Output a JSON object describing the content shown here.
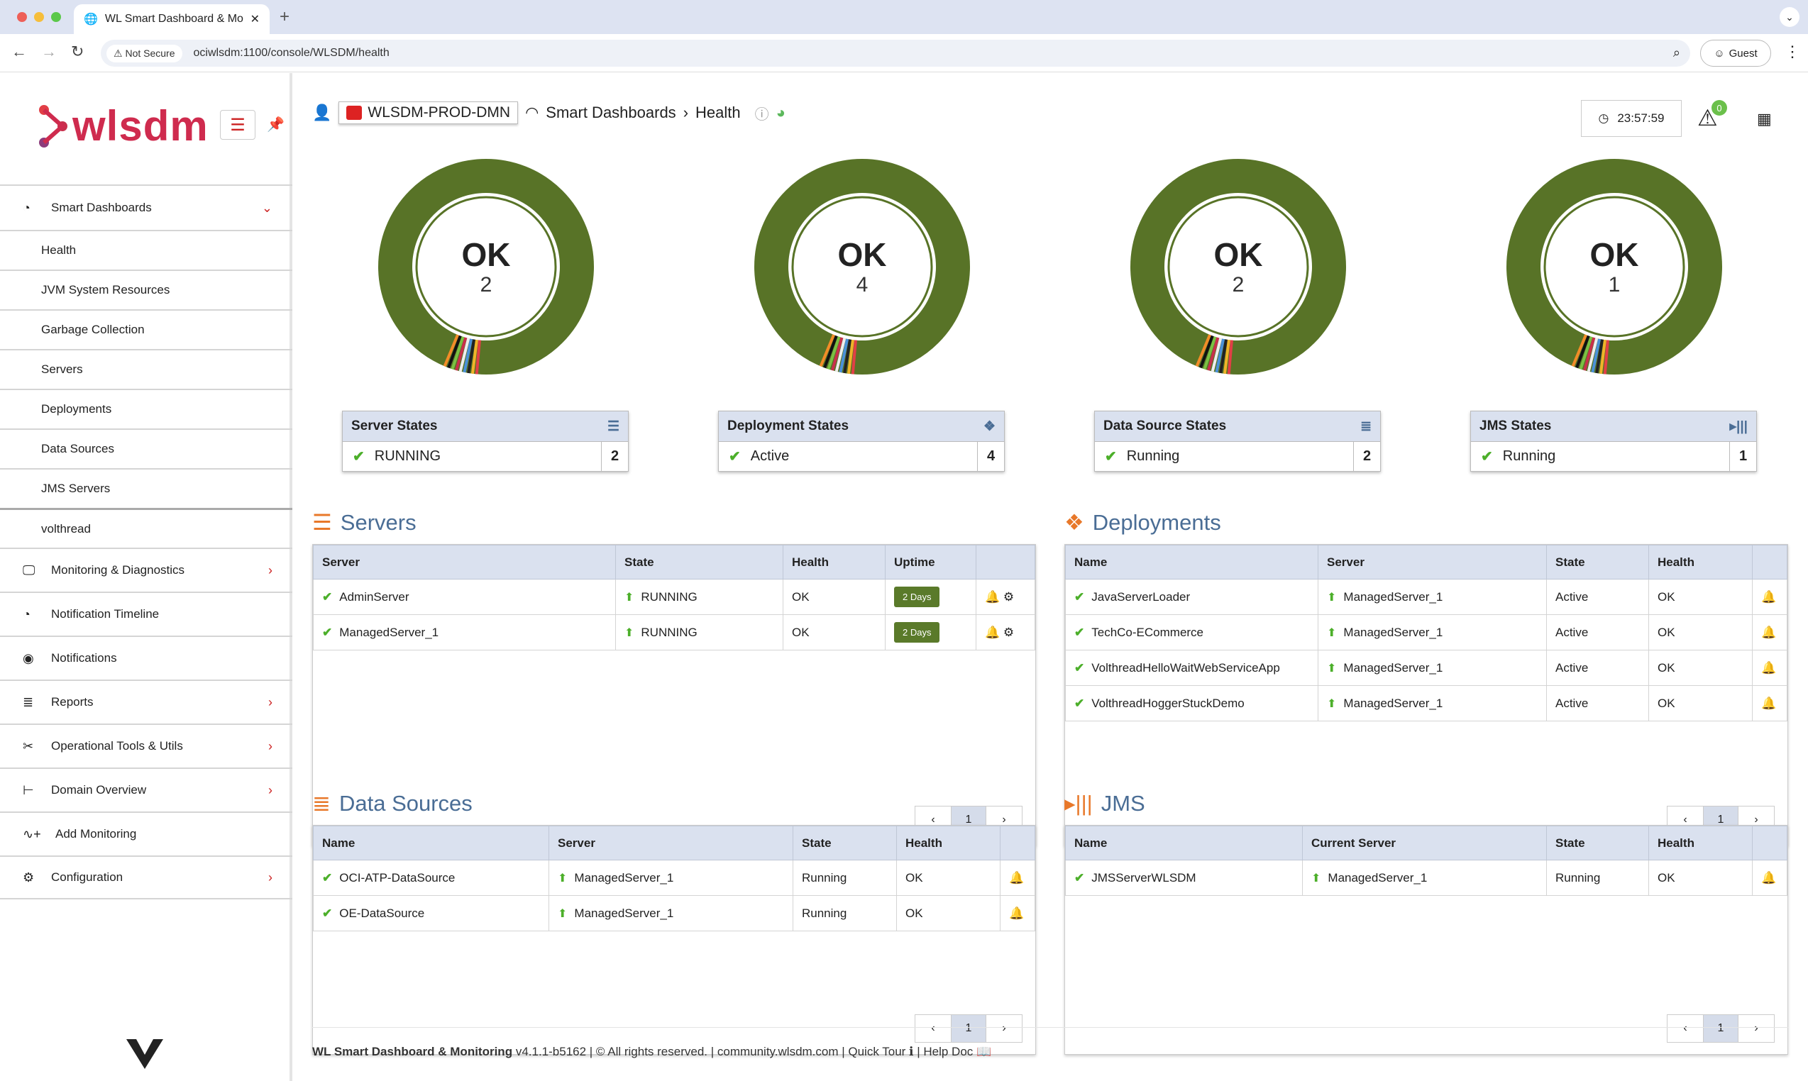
{
  "browser": {
    "tab_title": "WL Smart Dashboard & Monit",
    "not_secure": "Not Secure",
    "url": "ociwlsdm:1100/console/WLSDM/health",
    "guest": "Guest"
  },
  "sidebar": {
    "logo": "wlsdm",
    "smart_dashboards": "Smart Dashboards",
    "subitems": [
      "Health",
      "JVM System Resources",
      "Garbage Collection",
      "Servers",
      "Deployments",
      "Data Sources",
      "JMS Servers",
      "volthread"
    ],
    "items": [
      {
        "label": "Monitoring & Diagnostics",
        "icon": "monitor-icon"
      },
      {
        "label": "Notification Timeline",
        "icon": "timeline-icon"
      },
      {
        "label": "Notifications",
        "icon": "notifications-icon"
      },
      {
        "label": "Reports",
        "icon": "database-icon"
      },
      {
        "label": "Operational Tools & Utils",
        "icon": "tools-icon"
      },
      {
        "label": "Domain Overview",
        "icon": "tree-icon"
      },
      {
        "label": "Add Monitoring",
        "icon": "add-monitoring-icon"
      },
      {
        "label": "Configuration",
        "icon": "gear-icon"
      }
    ]
  },
  "header": {
    "domain": "WLSDM-PROD-DMN",
    "crumb1": "Smart Dashboards",
    "crumb2": "Health",
    "clock": "23:57:59",
    "alert_count": "0"
  },
  "donuts": [
    {
      "status": "OK",
      "count": "2"
    },
    {
      "status": "OK",
      "count": "4"
    },
    {
      "status": "OK",
      "count": "2"
    },
    {
      "status": "OK",
      "count": "1"
    }
  ],
  "state_boxes": [
    {
      "title": "Server States",
      "state": "RUNNING",
      "count": "2"
    },
    {
      "title": "Deployment States",
      "state": "Active",
      "count": "4"
    },
    {
      "title": "Data Source States",
      "state": "Running",
      "count": "2"
    },
    {
      "title": "JMS States",
      "state": "Running",
      "count": "1"
    }
  ],
  "servers": {
    "title": "Servers",
    "headers": [
      "Server",
      "State",
      "Health",
      "Uptime"
    ],
    "rows": [
      {
        "name": "AdminServer",
        "state": "RUNNING",
        "health": "OK",
        "uptime": "2 Days"
      },
      {
        "name": "ManagedServer_1",
        "state": "RUNNING",
        "health": "OK",
        "uptime": "2 Days"
      }
    ],
    "page": "1"
  },
  "deployments": {
    "title": "Deployments",
    "headers": [
      "Name",
      "Server",
      "State",
      "Health"
    ],
    "rows": [
      {
        "name": "JavaServerLoader",
        "server": "ManagedServer_1",
        "state": "Active",
        "health": "OK"
      },
      {
        "name": "TechCo-ECommerce",
        "server": "ManagedServer_1",
        "state": "Active",
        "health": "OK"
      },
      {
        "name": "VolthreadHelloWaitWebServiceApp",
        "server": "ManagedServer_1",
        "state": "Active",
        "health": "OK"
      },
      {
        "name": "VolthreadHoggerStuckDemo",
        "server": "ManagedServer_1",
        "state": "Active",
        "health": "OK"
      }
    ],
    "page": "1"
  },
  "datasources": {
    "title": "Data Sources",
    "headers": [
      "Name",
      "Server",
      "State",
      "Health"
    ],
    "rows": [
      {
        "name": "OCI-ATP-DataSource",
        "server": "ManagedServer_1",
        "state": "Running",
        "health": "OK"
      },
      {
        "name": "OE-DataSource",
        "server": "ManagedServer_1",
        "state": "Running",
        "health": "OK"
      }
    ],
    "page": "1"
  },
  "jms": {
    "title": "JMS",
    "headers": [
      "Name",
      "Current Server",
      "State",
      "Health"
    ],
    "rows": [
      {
        "name": "JMSServerWLSDM",
        "server": "ManagedServer_1",
        "state": "Running",
        "health": "OK"
      }
    ],
    "page": "1"
  },
  "footer": {
    "product": "WL Smart Dashboard & Monitoring",
    "rest": "v4.1.1-b5162 | © All rights reserved. | community.wlsdm.com | Quick Tour ℹ | Help Doc"
  },
  "colors": {
    "donut": "#587327",
    "accent": "#cf2b4e",
    "header_bg": "#dae1ef",
    "title": "#4a6d95",
    "orange": "#e8782a"
  }
}
